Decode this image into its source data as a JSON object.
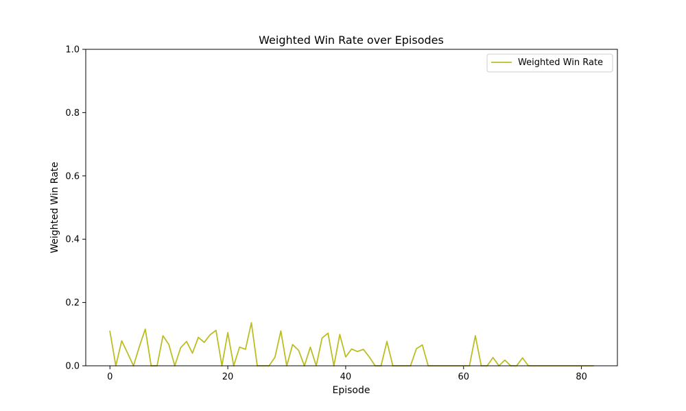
{
  "chart_data": {
    "type": "line",
    "title": "Weighted Win Rate over Episodes",
    "xlabel": "Episode",
    "ylabel": "Weighted Win Rate",
    "xlim": [
      -4.1,
      86.1
    ],
    "ylim": [
      0,
      1
    ],
    "xticks": [
      0,
      20,
      40,
      60,
      80
    ],
    "yticks": [
      0.0,
      0.2,
      0.4,
      0.6,
      0.8,
      1.0
    ],
    "ytick_labels": [
      "0.0",
      "0.2",
      "0.4",
      "0.6",
      "0.8",
      "1.0"
    ],
    "grid": false,
    "legend_position": "top-right",
    "series": [
      {
        "name": "Weighted Win Rate",
        "color": "#bcbd22",
        "x": [
          0,
          1,
          2,
          3,
          4,
          5,
          6,
          7,
          8,
          9,
          10,
          11,
          12,
          13,
          14,
          15,
          16,
          17,
          18,
          19,
          20,
          21,
          22,
          23,
          24,
          25,
          26,
          27,
          28,
          29,
          30,
          31,
          32,
          33,
          34,
          35,
          36,
          37,
          38,
          39,
          40,
          41,
          42,
          43,
          44,
          45,
          46,
          47,
          48,
          49,
          50,
          51,
          52,
          53,
          54,
          55,
          56,
          57,
          58,
          59,
          60,
          61,
          62,
          63,
          64,
          65,
          66,
          67,
          68,
          69,
          70,
          71,
          72,
          73,
          74,
          75,
          76,
          77,
          78,
          79,
          80,
          81,
          82
        ],
        "values": [
          0.109,
          0.0,
          0.079,
          0.04,
          0.0,
          0.061,
          0.116,
          0.0,
          0.0,
          0.095,
          0.067,
          0.0,
          0.057,
          0.077,
          0.04,
          0.09,
          0.074,
          0.098,
          0.112,
          0.0,
          0.105,
          0.0,
          0.059,
          0.052,
          0.136,
          0.0,
          0.0,
          0.0,
          0.027,
          0.11,
          0.0,
          0.067,
          0.049,
          0.0,
          0.059,
          0.0,
          0.088,
          0.103,
          0.0,
          0.099,
          0.028,
          0.053,
          0.045,
          0.052,
          0.028,
          0.0,
          0.0,
          0.077,
          0.0,
          0.0,
          0.0,
          0.0,
          0.054,
          0.066,
          0.0,
          0.0,
          0.0,
          0.0,
          0.0,
          0.0,
          0.0,
          0.0,
          0.095,
          0.0,
          0.0,
          0.026,
          0.0,
          0.018,
          0.0,
          0.0,
          0.025,
          0.0,
          0.0,
          0.0,
          0.0,
          0.0,
          0.0,
          0.0,
          0.0,
          0.0,
          0.0,
          0.0,
          0.0
        ]
      }
    ]
  }
}
